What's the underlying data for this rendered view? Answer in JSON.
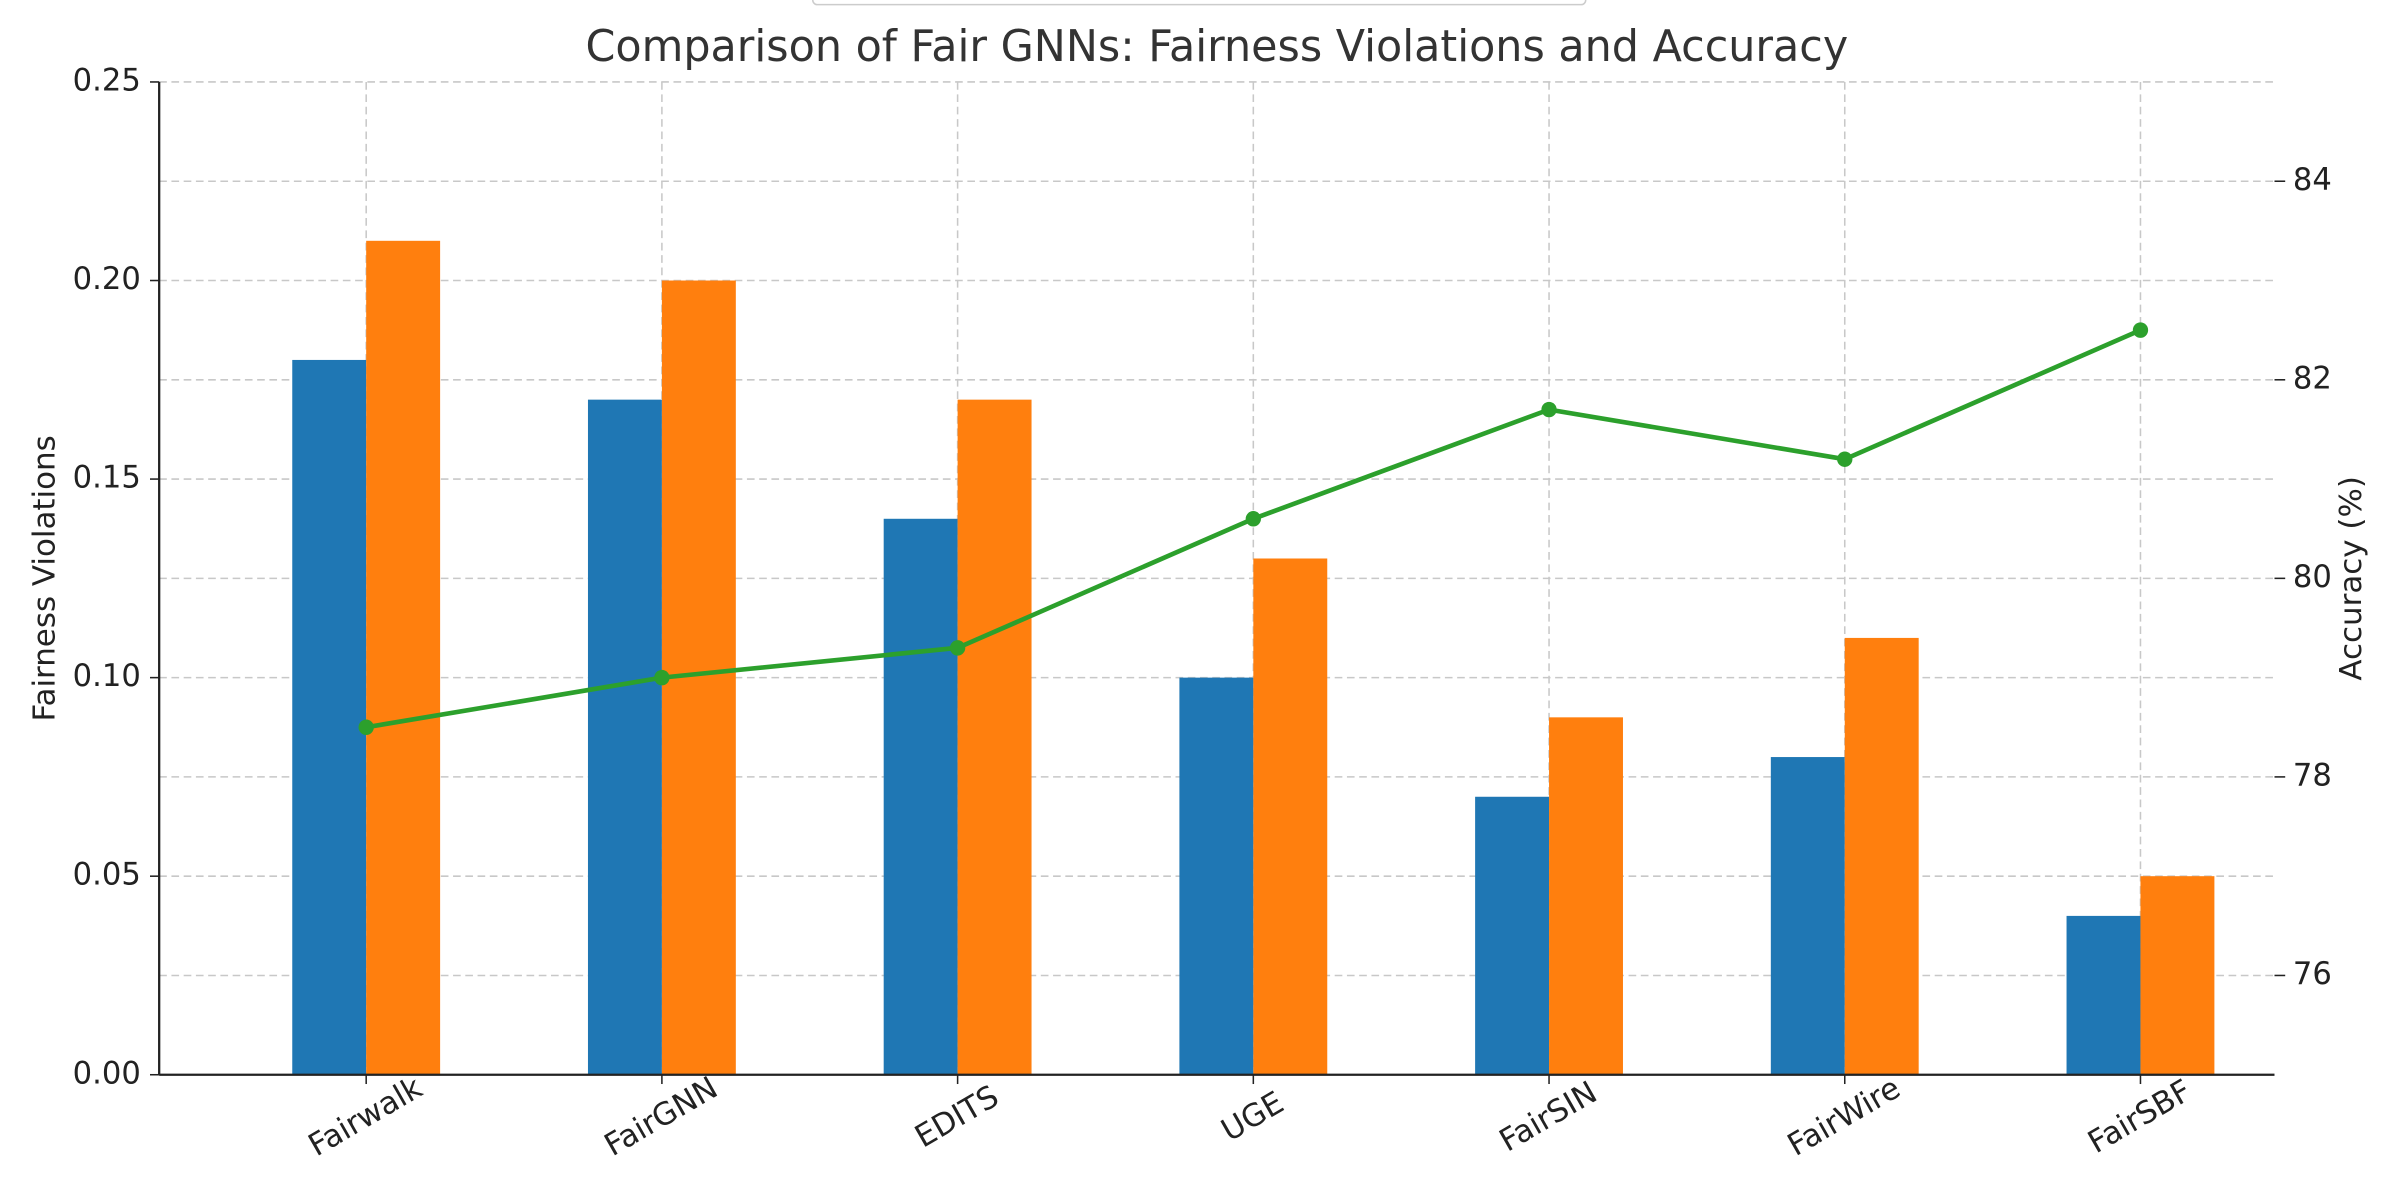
{
  "chart_data": {
    "type": "bar",
    "title": "Comparison of Fair GNNs: Fairness Violations and Accuracy",
    "categories": [
      "Fairwalk",
      "FairGNN",
      "EDITS",
      "UGE",
      "FairSIN",
      "FairWire",
      "FairSBF"
    ],
    "ylabel": "Fairness Violations",
    "y2label": "Accuracy (%)",
    "series": [
      {
        "type": "bar",
        "color": "#1f77b4",
        "values": [
          0.18,
          0.17,
          0.14,
          0.1,
          0.07,
          0.08,
          0.04
        ]
      },
      {
        "type": "bar",
        "color": "#ff7f0e",
        "values": [
          0.21,
          0.2,
          0.17,
          0.13,
          0.09,
          0.11,
          0.05
        ]
      },
      {
        "type": "line",
        "axis": "y2",
        "color": "#2ca02c",
        "values": [
          78.5,
          79.0,
          79.3,
          80.6,
          81.7,
          81.2,
          82.5
        ]
      }
    ],
    "ylim": [
      0,
      0.25
    ],
    "yticks": [
      {
        "value": 0,
        "label": "0.00"
      },
      {
        "value": 0.05,
        "label": "0.05"
      },
      {
        "value": 0.1,
        "label": "0.10"
      },
      {
        "value": 0.15,
        "label": "0.15"
      },
      {
        "value": 0.2,
        "label": "0.20"
      },
      {
        "value": 0.25,
        "label": "0.25"
      }
    ],
    "y2lim": [
      75,
      85
    ],
    "y2ticks": [
      76,
      78,
      80,
      82,
      84
    ],
    "grid": true
  }
}
